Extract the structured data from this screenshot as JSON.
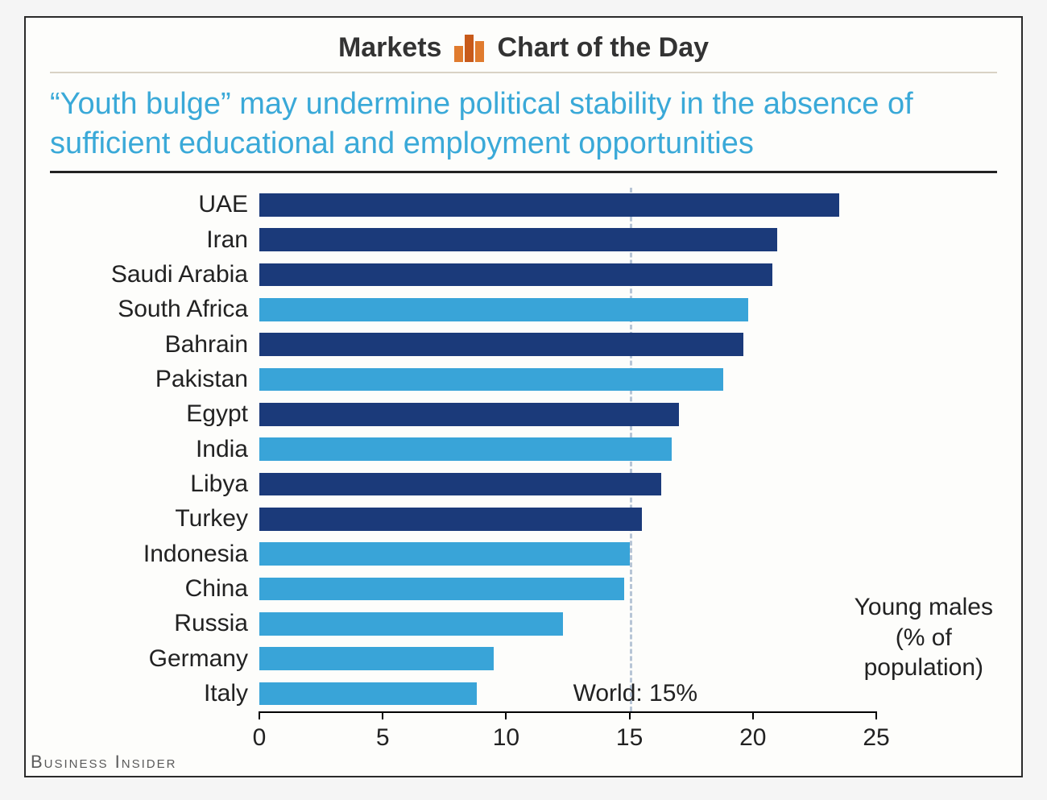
{
  "header": {
    "left_label": "Markets",
    "right_label": "Chart of the Day",
    "icon_colors": [
      "#e07b2e",
      "#c85a1a",
      "#e07b2e"
    ]
  },
  "title": "“Youth bulge” may undermine political stability in the absence of sufficient educational and employment opportunities",
  "title_color": "#3aa9d8",
  "title_fontsize": 38,
  "chart": {
    "type": "bar",
    "orientation": "horizontal",
    "background_color": "#fdfdfb",
    "label_fontsize": 30,
    "label_color": "#222222",
    "xlim": [
      0,
      25
    ],
    "xtick_step": 5,
    "xticks": [
      0,
      5,
      10,
      15,
      20,
      25
    ],
    "bar_height_ratio": 0.66,
    "colors": {
      "dark": "#1b3a7a",
      "light": "#39a4d8"
    },
    "reference_line": {
      "value": 15,
      "label": "World: 15%",
      "line_color": "#b7c5d6",
      "dash": "dashed"
    },
    "annotation": {
      "lines": [
        "Young males",
        "(% of",
        "population)"
      ]
    },
    "series": [
      {
        "label": "UAE",
        "value": 23.5,
        "color": "dark"
      },
      {
        "label": "Iran",
        "value": 21.0,
        "color": "dark"
      },
      {
        "label": "Saudi Arabia",
        "value": 20.8,
        "color": "dark"
      },
      {
        "label": "South Africa",
        "value": 19.8,
        "color": "light"
      },
      {
        "label": "Bahrain",
        "value": 19.6,
        "color": "dark"
      },
      {
        "label": "Pakistan",
        "value": 18.8,
        "color": "light"
      },
      {
        "label": "Egypt",
        "value": 17.0,
        "color": "dark"
      },
      {
        "label": "India",
        "value": 16.7,
        "color": "light"
      },
      {
        "label": "Libya",
        "value": 16.3,
        "color": "dark"
      },
      {
        "label": "Turkey",
        "value": 15.5,
        "color": "dark"
      },
      {
        "label": "Indonesia",
        "value": 15.0,
        "color": "light"
      },
      {
        "label": "China",
        "value": 14.8,
        "color": "light"
      },
      {
        "label": "Russia",
        "value": 12.3,
        "color": "light"
      },
      {
        "label": "Germany",
        "value": 9.5,
        "color": "light"
      },
      {
        "label": "Italy",
        "value": 8.8,
        "color": "light"
      }
    ]
  },
  "footer_brand": "Business Insider"
}
